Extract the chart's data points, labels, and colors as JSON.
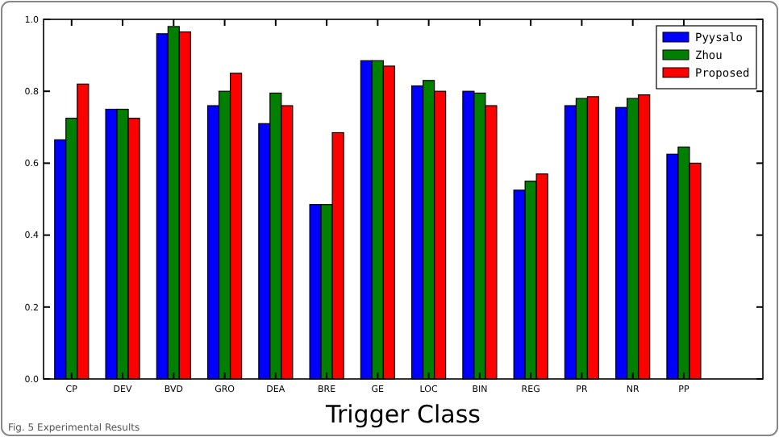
{
  "chart_data": {
    "type": "bar",
    "xlabel": "Trigger Class",
    "categories": [
      "CP",
      "DEV",
      "BVD",
      "GRO",
      "DEA",
      "BRE",
      "GE",
      "LOC",
      "BIN",
      "REG",
      "PR",
      "NR",
      "PP"
    ],
    "series": [
      {
        "name": "Pyysalo",
        "color": "#0000ff",
        "values": [
          0.665,
          0.75,
          0.96,
          0.76,
          0.71,
          0.485,
          0.885,
          0.815,
          0.8,
          0.525,
          0.76,
          0.755,
          0.625
        ]
      },
      {
        "name": "Zhou",
        "color": "#007f00",
        "values": [
          0.725,
          0.75,
          0.98,
          0.8,
          0.795,
          0.485,
          0.885,
          0.83,
          0.795,
          0.55,
          0.78,
          0.78,
          0.645
        ]
      },
      {
        "name": "Proposed",
        "color": "#ff0000",
        "values": [
          0.82,
          0.725,
          0.965,
          0.85,
          0.76,
          0.685,
          0.87,
          0.8,
          0.76,
          0.57,
          0.785,
          0.79,
          0.6
        ]
      }
    ],
    "ylim": [
      0,
      1
    ],
    "yticks": [
      {
        "value": 0,
        "label": "0.0"
      },
      {
        "value": 0.2,
        "label": "0.2"
      },
      {
        "value": 0.4,
        "label": "0.4"
      },
      {
        "value": 0.6,
        "label": "0.6"
      },
      {
        "value": 0.8,
        "label": "0.8"
      },
      {
        "value": 1,
        "label": "1.0"
      }
    ],
    "grid": false,
    "legend": "top right",
    "annotations": [
      "Fig. 5 Experimental Results"
    ]
  }
}
